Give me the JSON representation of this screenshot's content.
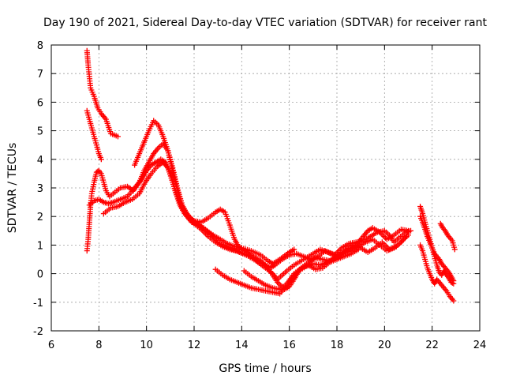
{
  "chart_data": {
    "type": "scatter",
    "title": "Day 190 of 2021, Sidereal Day-to-day VTEC variation (SDTVAR) for receiver rant",
    "xlabel": "GPS time / hours",
    "ylabel": "SDTVAR / TECUs",
    "xlim": [
      6,
      24
    ],
    "ylim": [
      -2,
      8
    ],
    "xticks": [
      "6",
      "8",
      "10",
      "12",
      "14",
      "16",
      "18",
      "20",
      "22",
      "24"
    ],
    "yticks": [
      "-2",
      "-1",
      "0",
      "1",
      "2",
      "3",
      "4",
      "5",
      "6",
      "7",
      "8"
    ],
    "grid": true,
    "marker": "+",
    "color": "#ff0000",
    "series": [
      {
        "name": "track-1",
        "points": [
          [
            7.5,
            7.8
          ],
          [
            7.55,
            7.3
          ],
          [
            7.6,
            6.9
          ],
          [
            7.65,
            6.5
          ],
          [
            7.8,
            6.2
          ],
          [
            7.95,
            5.8
          ],
          [
            8.1,
            5.6
          ],
          [
            8.3,
            5.4
          ],
          [
            8.5,
            4.9
          ],
          [
            8.8,
            4.8
          ]
        ]
      },
      {
        "name": "track-2",
        "points": [
          [
            7.5,
            5.7
          ],
          [
            7.6,
            5.4
          ],
          [
            7.7,
            5.1
          ],
          [
            7.8,
            4.8
          ],
          [
            7.9,
            4.5
          ],
          [
            8.0,
            4.2
          ],
          [
            8.1,
            4.0
          ]
        ]
      },
      {
        "name": "track-3",
        "points": [
          [
            7.5,
            0.8
          ],
          [
            7.55,
            1.2
          ],
          [
            7.6,
            1.8
          ],
          [
            7.65,
            2.4
          ],
          [
            7.7,
            2.8
          ],
          [
            7.8,
            3.2
          ],
          [
            7.9,
            3.55
          ],
          [
            8.0,
            3.6
          ],
          [
            8.1,
            3.5
          ],
          [
            8.2,
            3.2
          ],
          [
            8.3,
            2.9
          ],
          [
            8.45,
            2.7
          ],
          [
            8.6,
            2.8
          ],
          [
            8.9,
            3.0
          ],
          [
            9.2,
            3.05
          ],
          [
            9.45,
            2.9
          ],
          [
            9.7,
            3.2
          ],
          [
            9.9,
            3.6
          ],
          [
            10.1,
            3.9
          ],
          [
            10.3,
            4.2
          ],
          [
            10.5,
            4.4
          ],
          [
            10.7,
            4.55
          ],
          [
            10.9,
            4.3
          ],
          [
            11.1,
            3.6
          ],
          [
            11.3,
            2.9
          ],
          [
            11.5,
            2.4
          ],
          [
            11.7,
            2.1
          ],
          [
            11.9,
            1.9
          ],
          [
            12.2,
            1.7
          ],
          [
            12.5,
            1.5
          ],
          [
            12.8,
            1.35
          ],
          [
            13.1,
            1.2
          ],
          [
            13.4,
            1.05
          ],
          [
            13.7,
            0.95
          ],
          [
            14.0,
            0.9
          ],
          [
            14.4,
            0.8
          ],
          [
            14.8,
            0.65
          ],
          [
            15.1,
            0.45
          ],
          [
            15.3,
            0.35
          ],
          [
            15.6,
            0.5
          ],
          [
            16.0,
            0.75
          ],
          [
            16.2,
            0.85
          ]
        ]
      },
      {
        "name": "track-4",
        "points": [
          [
            7.6,
            2.4
          ],
          [
            7.8,
            2.55
          ],
          [
            8.0,
            2.6
          ],
          [
            8.2,
            2.5
          ],
          [
            8.4,
            2.45
          ],
          [
            8.6,
            2.5
          ],
          [
            8.9,
            2.6
          ],
          [
            9.2,
            2.7
          ],
          [
            9.5,
            3.0
          ],
          [
            9.8,
            3.3
          ],
          [
            10.0,
            3.6
          ],
          [
            10.2,
            3.8
          ],
          [
            10.4,
            3.9
          ],
          [
            10.6,
            4.0
          ],
          [
            10.8,
            3.9
          ],
          [
            11.0,
            3.5
          ],
          [
            11.2,
            2.9
          ],
          [
            11.4,
            2.4
          ],
          [
            11.6,
            2.1
          ],
          [
            11.8,
            1.9
          ],
          [
            12.0,
            1.75
          ],
          [
            12.3,
            1.55
          ],
          [
            12.6,
            1.3
          ],
          [
            12.9,
            1.1
          ],
          [
            13.2,
            0.95
          ],
          [
            13.5,
            0.85
          ],
          [
            13.8,
            0.8
          ],
          [
            14.2,
            0.65
          ],
          [
            14.6,
            0.45
          ],
          [
            15.0,
            0.2
          ],
          [
            15.3,
            0.0
          ],
          [
            15.5,
            -0.2
          ],
          [
            15.7,
            -0.05
          ],
          [
            15.9,
            0.1
          ],
          [
            16.2,
            0.3
          ],
          [
            16.6,
            0.5
          ],
          [
            17.0,
            0.7
          ],
          [
            17.3,
            0.85
          ],
          [
            17.6,
            0.75
          ],
          [
            17.9,
            0.65
          ],
          [
            18.2,
            0.9
          ],
          [
            18.5,
            1.05
          ],
          [
            18.8,
            1.1
          ],
          [
            19.1,
            1.15
          ],
          [
            19.4,
            1.3
          ],
          [
            19.7,
            1.45
          ],
          [
            20.0,
            1.5
          ],
          [
            20.2,
            1.35
          ],
          [
            20.4,
            1.1
          ],
          [
            20.6,
            1.25
          ],
          [
            20.9,
            1.45
          ],
          [
            21.1,
            1.5
          ]
        ]
      },
      {
        "name": "track-5",
        "points": [
          [
            8.2,
            2.1
          ],
          [
            8.5,
            2.3
          ],
          [
            8.8,
            2.35
          ],
          [
            9.1,
            2.5
          ],
          [
            9.4,
            2.6
          ],
          [
            9.7,
            2.8
          ],
          [
            9.95,
            3.2
          ],
          [
            10.2,
            3.5
          ],
          [
            10.45,
            3.75
          ],
          [
            10.7,
            3.9
          ],
          [
            10.9,
            3.7
          ],
          [
            11.1,
            3.2
          ],
          [
            11.3,
            2.7
          ],
          [
            11.5,
            2.3
          ],
          [
            11.75,
            2.0
          ],
          [
            12.0,
            1.85
          ],
          [
            12.3,
            1.8
          ],
          [
            12.6,
            1.95
          ],
          [
            12.9,
            2.15
          ],
          [
            13.1,
            2.25
          ],
          [
            13.3,
            2.15
          ],
          [
            13.5,
            1.7
          ],
          [
            13.7,
            1.2
          ],
          [
            13.9,
            0.9
          ],
          [
            14.2,
            0.75
          ],
          [
            14.5,
            0.6
          ],
          [
            14.8,
            0.45
          ],
          [
            15.1,
            0.2
          ],
          [
            15.3,
            -0.05
          ],
          [
            15.5,
            -0.3
          ],
          [
            15.8,
            -0.55
          ],
          [
            16.0,
            -0.45
          ],
          [
            16.2,
            -0.2
          ],
          [
            16.4,
            0.1
          ],
          [
            16.7,
            0.25
          ],
          [
            17.0,
            0.35
          ],
          [
            17.3,
            0.3
          ],
          [
            17.6,
            0.4
          ],
          [
            17.9,
            0.55
          ],
          [
            18.2,
            0.7
          ],
          [
            18.5,
            0.8
          ],
          [
            18.8,
            1.0
          ],
          [
            19.1,
            1.3
          ],
          [
            19.3,
            1.5
          ],
          [
            19.5,
            1.6
          ],
          [
            19.8,
            1.45
          ],
          [
            20.1,
            1.2
          ],
          [
            20.4,
            1.35
          ],
          [
            20.7,
            1.55
          ],
          [
            21.0,
            1.5
          ]
        ]
      },
      {
        "name": "track-6",
        "points": [
          [
            9.5,
            3.8
          ],
          [
            9.7,
            4.2
          ],
          [
            9.9,
            4.6
          ],
          [
            10.1,
            5.0
          ],
          [
            10.3,
            5.35
          ],
          [
            10.5,
            5.2
          ],
          [
            10.7,
            4.8
          ],
          [
            10.9,
            4.3
          ],
          [
            11.1,
            3.7
          ],
          [
            11.3,
            3.0
          ],
          [
            11.5,
            2.4
          ],
          [
            11.7,
            2.0
          ],
          [
            11.9,
            1.8
          ],
          [
            12.1,
            1.75
          ],
          [
            12.4,
            1.6
          ],
          [
            12.7,
            1.4
          ],
          [
            13.0,
            1.1
          ],
          [
            13.3,
            0.95
          ],
          [
            13.6,
            0.85
          ],
          [
            13.9,
            0.75
          ],
          [
            14.2,
            0.65
          ],
          [
            14.5,
            0.55
          ],
          [
            14.8,
            0.4
          ],
          [
            15.0,
            0.3
          ],
          [
            15.2,
            0.2
          ],
          [
            15.4,
            0.3
          ],
          [
            15.7,
            0.5
          ],
          [
            16.0,
            0.65
          ],
          [
            16.3,
            0.7
          ],
          [
            16.6,
            0.6
          ],
          [
            16.9,
            0.5
          ],
          [
            17.2,
            0.6
          ],
          [
            17.5,
            0.8
          ],
          [
            17.8,
            0.7
          ],
          [
            18.1,
            0.6
          ],
          [
            18.4,
            0.85
          ],
          [
            18.7,
            1.0
          ],
          [
            19.0,
            0.9
          ],
          [
            19.3,
            0.75
          ],
          [
            19.6,
            0.9
          ],
          [
            19.9,
            1.1
          ],
          [
            20.2,
            0.85
          ],
          [
            20.5,
            0.95
          ],
          [
            20.8,
            1.2
          ],
          [
            21.0,
            1.35
          ]
        ]
      },
      {
        "name": "track-7",
        "points": [
          [
            12.9,
            0.15
          ],
          [
            13.2,
            -0.05
          ],
          [
            13.5,
            -0.2
          ],
          [
            13.8,
            -0.3
          ],
          [
            14.1,
            -0.4
          ],
          [
            14.4,
            -0.5
          ],
          [
            14.7,
            -0.55
          ],
          [
            15.0,
            -0.6
          ],
          [
            15.3,
            -0.65
          ],
          [
            15.6,
            -0.7
          ],
          [
            15.9,
            -0.4
          ],
          [
            16.2,
            -0.1
          ],
          [
            16.5,
            0.2
          ],
          [
            16.8,
            0.4
          ],
          [
            17.1,
            0.55
          ],
          [
            17.4,
            0.5
          ],
          [
            17.7,
            0.45
          ],
          [
            18.0,
            0.6
          ],
          [
            18.3,
            0.75
          ],
          [
            18.6,
            0.8
          ],
          [
            18.9,
            0.95
          ],
          [
            19.2,
            1.1
          ],
          [
            19.5,
            1.2
          ],
          [
            19.8,
            1.0
          ],
          [
            20.1,
            0.8
          ],
          [
            20.4,
            0.9
          ],
          [
            20.7,
            1.1
          ],
          [
            20.9,
            1.3
          ]
        ]
      },
      {
        "name": "track-8",
        "points": [
          [
            14.1,
            0.1
          ],
          [
            14.4,
            -0.1
          ],
          [
            14.7,
            -0.25
          ],
          [
            15.0,
            -0.4
          ],
          [
            15.3,
            -0.5
          ],
          [
            15.6,
            -0.55
          ],
          [
            15.9,
            -0.35
          ],
          [
            16.2,
            0.0
          ],
          [
            16.5,
            0.2
          ],
          [
            16.8,
            0.3
          ],
          [
            17.1,
            0.15
          ],
          [
            17.4,
            0.2
          ],
          [
            17.7,
            0.4
          ],
          [
            18.0,
            0.5
          ],
          [
            18.3,
            0.6
          ],
          [
            18.6,
            0.7
          ],
          [
            18.9,
            0.85
          ]
        ]
      },
      {
        "name": "track-9",
        "points": [
          [
            21.5,
            2.35
          ],
          [
            21.6,
            2.1
          ],
          [
            21.7,
            1.8
          ],
          [
            21.8,
            1.5
          ],
          [
            21.9,
            1.2
          ],
          [
            22.0,
            0.9
          ],
          [
            22.1,
            0.6
          ],
          [
            22.2,
            0.3
          ],
          [
            22.3,
            0.05
          ],
          [
            22.4,
            -0.05
          ],
          [
            22.5,
            0.1
          ],
          [
            22.6,
            -0.05
          ],
          [
            22.7,
            -0.15
          ],
          [
            22.8,
            -0.3
          ],
          [
            22.9,
            -0.35
          ]
        ]
      },
      {
        "name": "track-10",
        "points": [
          [
            21.5,
            1.0
          ],
          [
            21.6,
            0.8
          ],
          [
            21.7,
            0.5
          ],
          [
            21.8,
            0.2
          ],
          [
            21.9,
            0.0
          ],
          [
            22.0,
            -0.2
          ],
          [
            22.1,
            -0.35
          ],
          [
            22.2,
            -0.2
          ],
          [
            22.3,
            -0.3
          ],
          [
            22.45,
            -0.45
          ],
          [
            22.6,
            -0.6
          ],
          [
            22.75,
            -0.8
          ],
          [
            22.9,
            -0.95
          ]
        ]
      },
      {
        "name": "track-11",
        "points": [
          [
            21.5,
            2.0
          ],
          [
            21.6,
            1.8
          ],
          [
            21.7,
            1.55
          ],
          [
            21.8,
            1.3
          ],
          [
            21.9,
            1.1
          ],
          [
            22.0,
            0.9
          ],
          [
            22.1,
            0.7
          ],
          [
            22.2,
            0.6
          ],
          [
            22.3,
            0.5
          ],
          [
            22.4,
            0.35
          ],
          [
            22.5,
            0.25
          ],
          [
            22.6,
            0.15
          ],
          [
            22.7,
            0.05
          ],
          [
            22.8,
            -0.1
          ],
          [
            22.9,
            -0.25
          ]
        ]
      },
      {
        "name": "track-12",
        "points": [
          [
            22.35,
            1.75
          ],
          [
            22.45,
            1.6
          ],
          [
            22.55,
            1.5
          ],
          [
            22.65,
            1.35
          ],
          [
            22.75,
            1.25
          ],
          [
            22.85,
            1.15
          ],
          [
            22.95,
            0.85
          ]
        ]
      }
    ]
  }
}
